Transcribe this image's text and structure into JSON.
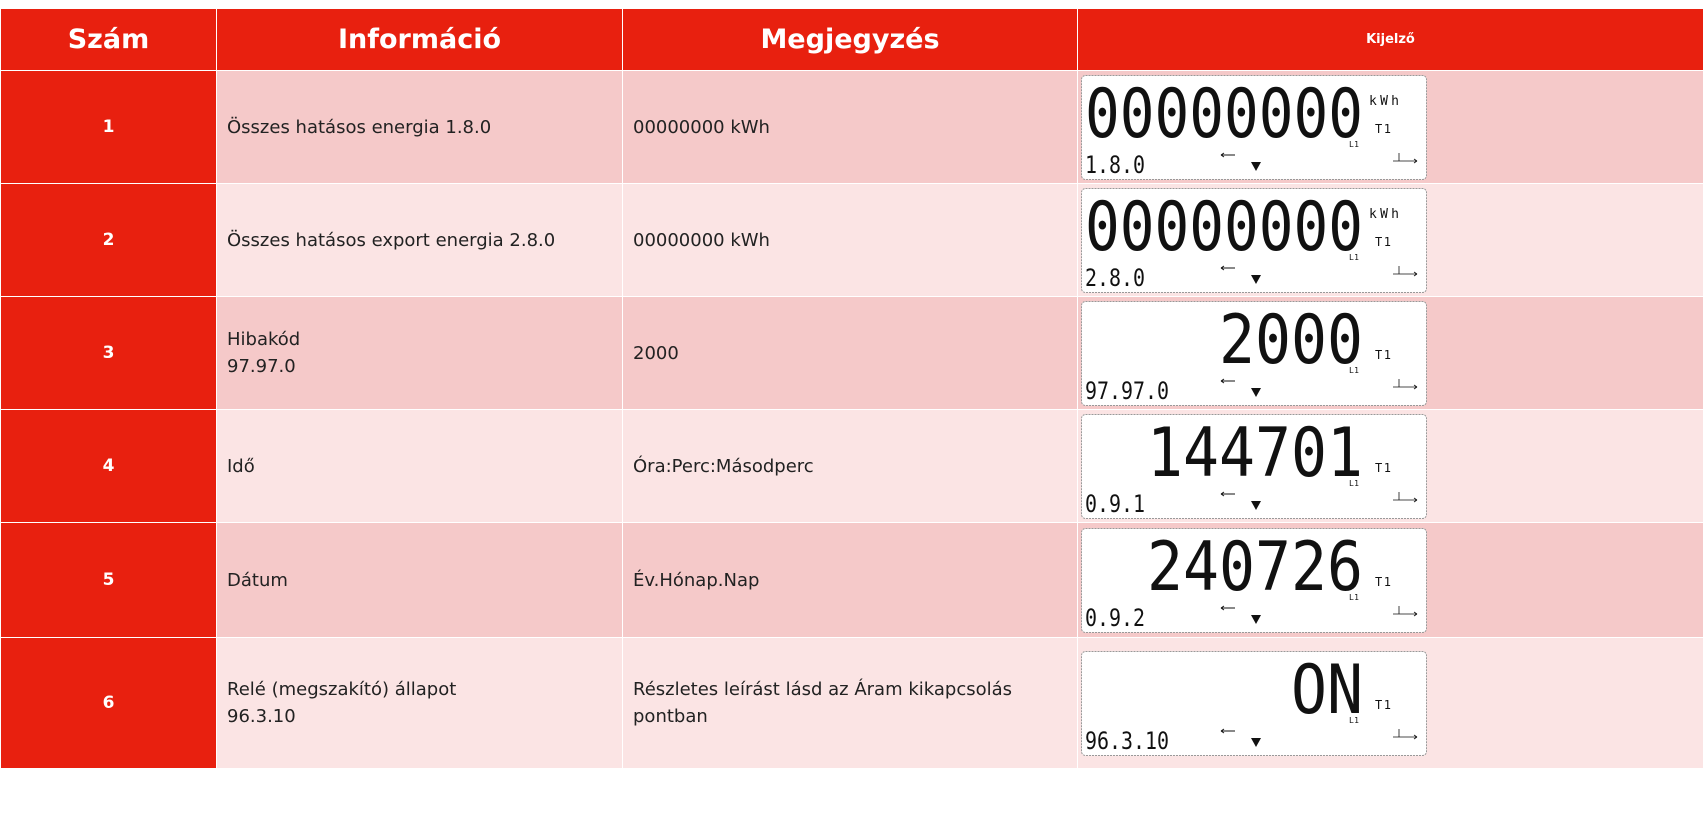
{
  "header": {
    "columns": [
      "Szám",
      "Információ",
      "Megjegyzés",
      "Kijelző"
    ]
  },
  "table": {
    "rows": [
      {
        "number": "1",
        "info": [
          "Összes hatásos energia 1.8.0"
        ],
        "note": "00000000 kWh",
        "display": {
          "main": "00000000",
          "code": "1.8.0",
          "unit": "kWh",
          "tariff": "T1",
          "phase": "L1"
        }
      },
      {
        "number": "2",
        "info": [
          "Összes hatásos export energia 2.8.0"
        ],
        "note": "00000000 kWh",
        "display": {
          "main": "00000000",
          "code": "2.8.0",
          "unit": "kWh",
          "tariff": "T1",
          "phase": "L1"
        }
      },
      {
        "number": "3",
        "info": [
          "Hibakód",
          "97.97.0"
        ],
        "note": "2000",
        "display": {
          "main": "2000",
          "code": "97.97.0",
          "tariff": "T1",
          "phase": "L1"
        }
      },
      {
        "number": "4",
        "info": [
          "Idő"
        ],
        "note": "Óra:Perc:Másodperc",
        "display": {
          "main": "144701",
          "code": "0.9.1",
          "tariff": "T1",
          "phase": "L1"
        }
      },
      {
        "number": "5",
        "info": [
          "Dátum"
        ],
        "note": "Év.Hónap.Nap",
        "display": {
          "main": "240726",
          "code": "0.9.2",
          "tariff": "T1",
          "phase": "L1"
        }
      },
      {
        "number": "6",
        "info": [
          "Relé (megszakító) állapot",
          "96.3.10"
        ],
        "note": "Részletes leírást lásd az Áram kikapcsolás pontban",
        "display": {
          "main": "ON",
          "code": "96.3.10",
          "tariff": "T1",
          "phase": "L1"
        }
      }
    ]
  }
}
